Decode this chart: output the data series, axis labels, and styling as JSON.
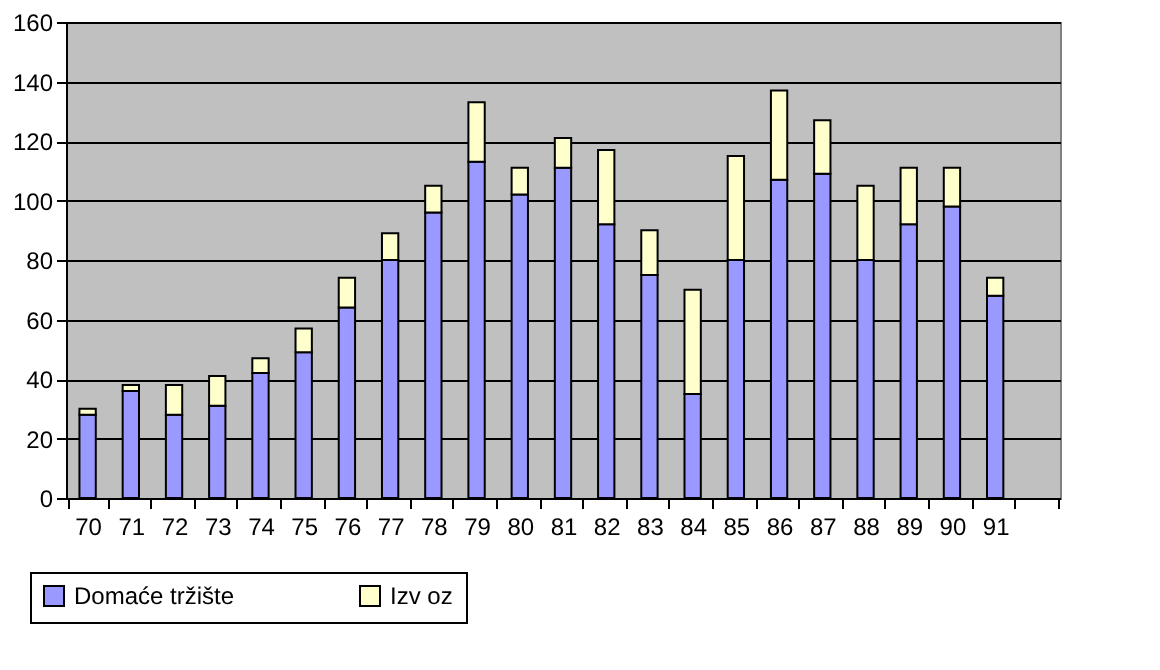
{
  "chart_data": {
    "type": "bar",
    "stacked": true,
    "categories": [
      "70",
      "71",
      "72",
      "73",
      "74",
      "75",
      "76",
      "77",
      "78",
      "79",
      "80",
      "81",
      "82",
      "83",
      "84",
      "85",
      "86",
      "87",
      "88",
      "89",
      "90",
      "91",
      null
    ],
    "series": [
      {
        "name": "Domaće tržište",
        "color": "#9999ff",
        "values": [
          28,
          36,
          28,
          31,
          42,
          49,
          64,
          80,
          96,
          113,
          102,
          111,
          92,
          75,
          35,
          80,
          107,
          109,
          80,
          92,
          98,
          68,
          null
        ]
      },
      {
        "name": "Izv oz",
        "color": "#ffffcc",
        "values": [
          2,
          2,
          10,
          10,
          5,
          8,
          10,
          9,
          9,
          20,
          9,
          10,
          25,
          15,
          35,
          35,
          30,
          18,
          25,
          19,
          13,
          6,
          null
        ]
      }
    ],
    "ylim": [
      0,
      160
    ],
    "yticks": [
      0,
      20,
      40,
      60,
      80,
      100,
      120,
      140,
      160
    ],
    "grid": "y",
    "legend": "bottom left"
  }
}
